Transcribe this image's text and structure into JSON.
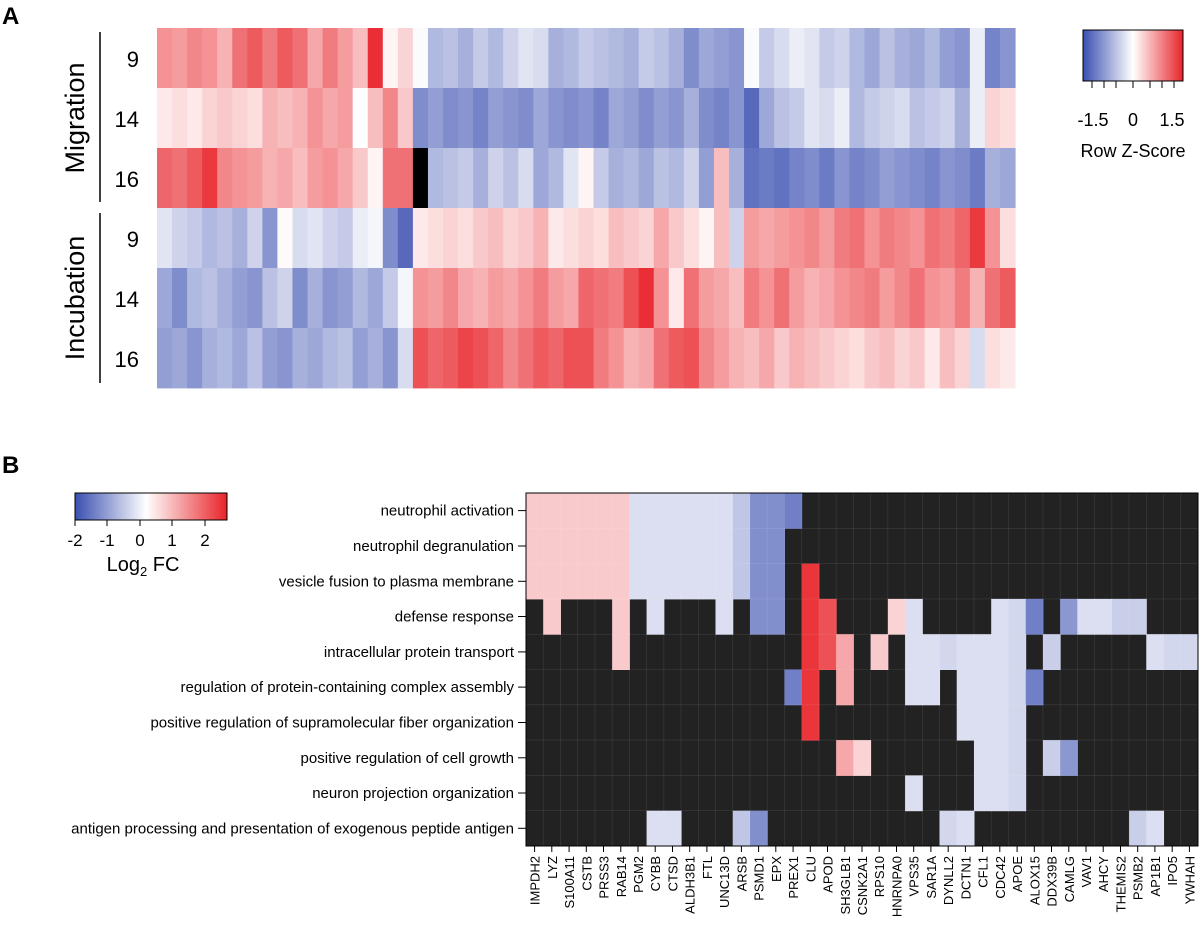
{
  "colors": {
    "low": "#3a4fb0",
    "mid": "#ffffff",
    "high": "#e8242a",
    "missing": "#000000",
    "panelB_background": "#222222"
  },
  "chart_data": [
    {
      "panel": "A",
      "type": "heatmap",
      "title": "",
      "row_groups": [
        {
          "label": "Migration",
          "rows": [
            "9",
            "14",
            "16"
          ]
        },
        {
          "label": "Incubation",
          "rows": [
            "9",
            "14",
            "16"
          ]
        }
      ],
      "row_labels": [
        "9",
        "14",
        "16",
        "9",
        "14",
        "16"
      ],
      "n_columns": 57,
      "colorbar": {
        "title": "Row Z-Score",
        "ticks": [
          "-1.5",
          "0",
          "1.5"
        ],
        "range": [
          -2,
          2
        ]
      },
      "values": [
        [
          1.0,
          0.9,
          1.1,
          1.0,
          0.7,
          1.3,
          1.5,
          1.2,
          1.5,
          1.3,
          0.8,
          1.2,
          0.9,
          0.6,
          1.9,
          0.1,
          0.4,
          -0.05,
          -0.8,
          -0.7,
          -0.9,
          -0.6,
          -0.8,
          -0.5,
          -0.3,
          -0.4,
          -0.9,
          -0.8,
          -0.6,
          -0.7,
          -0.8,
          -0.9,
          -0.6,
          -0.7,
          -0.9,
          -1.3,
          -1.0,
          -1.1,
          -1.2,
          -0.05,
          -0.6,
          -0.4,
          -0.2,
          -0.3,
          -0.6,
          -0.5,
          -0.8,
          -1.0,
          -0.7,
          -0.9,
          -1.0,
          -0.8,
          -1.1,
          -1.2,
          -0.2,
          -1.4,
          -1.2
        ],
        [
          0.2,
          0.3,
          0.2,
          0.4,
          0.5,
          0.4,
          0.3,
          0.7,
          0.6,
          0.7,
          1.0,
          0.8,
          0.9,
          0.0,
          0.6,
          1.1,
          0.5,
          -1.3,
          -1.1,
          -1.3,
          -1.2,
          -1.4,
          -1.1,
          -1.2,
          -1.3,
          -1.0,
          -1.2,
          -1.3,
          -1.2,
          -1.4,
          -1.0,
          -1.1,
          -1.3,
          -1.1,
          -1.2,
          -0.9,
          -1.3,
          -1.4,
          -1.2,
          -1.7,
          -1.0,
          -0.7,
          -0.6,
          -0.3,
          -0.4,
          -0.2,
          -0.8,
          -0.6,
          -0.5,
          -0.4,
          -0.7,
          -0.6,
          -0.5,
          -0.9,
          -0.2,
          0.4,
          0.3
        ],
        [
          1.4,
          1.3,
          1.5,
          1.8,
          1.1,
          1.0,
          0.9,
          0.7,
          0.8,
          0.6,
          0.9,
          1.0,
          0.8,
          0.5,
          0.1,
          1.3,
          1.3,
          null,
          -0.8,
          -0.7,
          -0.6,
          -0.9,
          -0.5,
          -0.7,
          -0.4,
          -1.0,
          -0.8,
          -0.3,
          0.1,
          -0.6,
          -0.9,
          -0.8,
          -1.0,
          -0.7,
          -0.8,
          -0.5,
          -1.1,
          0.6,
          -0.9,
          -1.6,
          -1.5,
          -1.6,
          -1.4,
          -1.3,
          -1.5,
          -1.2,
          -1.4,
          -1.3,
          -1.1,
          -1.2,
          -1.3,
          -1.4,
          -1.2,
          -1.3,
          -1.5,
          -0.9,
          -1.0
        ],
        [
          -0.3,
          -0.5,
          -0.6,
          -0.8,
          -0.7,
          -0.9,
          -0.5,
          -1.2,
          0.05,
          -0.4,
          -0.3,
          -0.5,
          -0.6,
          -0.2,
          -0.1,
          -1.3,
          -1.7,
          0.2,
          0.3,
          0.4,
          0.3,
          0.5,
          0.6,
          0.4,
          0.5,
          0.7,
          0.2,
          0.3,
          0.4,
          0.3,
          0.6,
          0.5,
          0.4,
          0.8,
          0.5,
          0.3,
          0.1,
          0.6,
          -0.5,
          0.9,
          0.8,
          0.9,
          1.0,
          1.1,
          0.9,
          1.2,
          1.3,
          1.0,
          1.2,
          1.1,
          1.0,
          1.3,
          1.2,
          1.4,
          1.8,
          1.0,
          0.3
        ],
        [
          -1.0,
          -1.3,
          -0.8,
          -0.7,
          -0.9,
          -1.1,
          -1.2,
          -0.7,
          -0.5,
          -1.3,
          -0.9,
          -1.2,
          -1.1,
          -0.8,
          -1.0,
          -0.6,
          -0.1,
          1.0,
          0.9,
          1.1,
          0.8,
          0.7,
          0.9,
          0.8,
          1.0,
          1.2,
          0.9,
          0.8,
          1.4,
          1.3,
          1.2,
          1.6,
          1.9,
          1.0,
          0.2,
          1.3,
          0.9,
          0.8,
          0.6,
          1.2,
          1.0,
          1.3,
          0.9,
          0.7,
          0.8,
          1.0,
          1.1,
          1.2,
          0.9,
          1.1,
          1.3,
          1.0,
          0.9,
          1.2,
          0.7,
          1.3,
          1.5
        ],
        [
          -1.1,
          -1.0,
          -1.2,
          -0.9,
          -0.8,
          -1.0,
          -0.7,
          -1.1,
          -1.2,
          -0.9,
          -1.0,
          -0.8,
          -0.7,
          -1.1,
          -0.9,
          -1.2,
          -0.4,
          1.6,
          1.4,
          1.5,
          1.7,
          1.6,
          1.4,
          1.1,
          1.3,
          1.5,
          1.4,
          1.6,
          1.6,
          1.2,
          1.0,
          0.7,
          0.8,
          1.3,
          1.5,
          1.6,
          1.1,
          0.9,
          0.7,
          0.6,
          0.8,
          0.5,
          0.7,
          0.6,
          0.5,
          0.4,
          0.3,
          0.5,
          0.6,
          0.4,
          0.5,
          0.2,
          0.6,
          0.4,
          -0.4,
          0.3,
          0.2
        ]
      ]
    },
    {
      "panel": "B",
      "type": "heatmap",
      "colorbar": {
        "title": "Log",
        "title_subscript": "2",
        "title_suffix": " FC",
        "ticks": [
          "-2",
          "-1",
          "0",
          "1",
          "2"
        ],
        "range": [
          -2.2,
          2.5
        ]
      },
      "terms": [
        "neutrophil activation",
        "neutrophil degranulation",
        "vesicle fusion to plasma membrane",
        "defense response",
        "intracellular protein transport",
        "regulation of protein-containing complex assembly",
        "positive regulation of supramolecular fiber organization",
        "positive regulation of cell growth",
        "neuron projection organization",
        "antigen processing and presentation of exogenous peptide antigen"
      ],
      "genes": [
        "IMPDH2",
        "LYZ",
        "S100A11",
        "CSTB",
        "PRSS3",
        "RAB14",
        "PGM2",
        "CYBB",
        "CTSD",
        "ALDH3B1",
        "FTL",
        "UNC13D",
        "ARSB",
        "PSMD1",
        "EPX",
        "PREX1",
        "CLU",
        "APOD",
        "SH3GLB1",
        "CSNK2A1",
        "RPS10",
        "HNRNPA0",
        "VPS35",
        "SAR1A",
        "DYNLL2",
        "DCTN1",
        "CFL1",
        "CDC42",
        "APOE",
        "ALOX15",
        "DDX39B",
        "CAMLG",
        "VAV1",
        "AHCY",
        "THEMIS2",
        "PSMB2",
        "AP1B1",
        "IPO5",
        "YWHAH"
      ],
      "gene_log2fc": [
        0.6,
        0.6,
        0.6,
        0.6,
        0.6,
        0.6,
        -0.4,
        -0.4,
        -0.4,
        -0.4,
        -0.4,
        -0.4,
        -0.7,
        -1.4,
        -1.4,
        -1.6,
        2.3,
        2.0,
        1.0,
        0.5,
        0.6,
        0.5,
        -0.4,
        -0.4,
        -0.5,
        -0.4,
        -0.4,
        -0.4,
        -0.5,
        -1.6,
        -0.6,
        -1.3,
        -0.4,
        -0.4,
        -0.6,
        -0.6,
        -0.4,
        -0.5,
        -0.5
      ],
      "membership": [
        [
          0,
          1,
          2,
          3,
          4,
          5,
          6,
          7,
          8,
          9,
          10,
          11,
          12,
          13,
          14,
          15
        ],
        [
          0,
          1,
          2,
          3,
          4,
          5,
          6,
          7,
          8,
          9,
          10,
          11,
          12,
          13,
          14
        ],
        [
          0,
          1,
          2,
          3,
          4,
          5,
          6,
          7,
          8,
          9,
          10,
          11,
          12,
          13,
          14,
          16
        ],
        [
          1,
          5,
          7,
          11,
          13,
          14,
          16,
          17,
          21,
          22,
          27,
          28,
          29,
          31,
          32,
          33,
          34,
          35
        ],
        [
          5,
          16,
          17,
          18,
          20,
          22,
          23,
          24,
          25,
          26,
          27,
          28,
          30,
          36,
          37,
          38
        ],
        [
          15,
          16,
          18,
          22,
          23,
          25,
          26,
          27,
          28,
          29
        ],
        [
          16,
          25,
          26,
          27,
          28
        ],
        [
          18,
          19,
          26,
          27,
          28,
          30,
          31
        ],
        [
          22,
          26,
          27,
          28
        ],
        [
          7,
          8,
          12,
          13,
          24,
          25,
          35,
          36
        ]
      ]
    }
  ],
  "panel_labels": {
    "a": "A",
    "b": "B"
  }
}
